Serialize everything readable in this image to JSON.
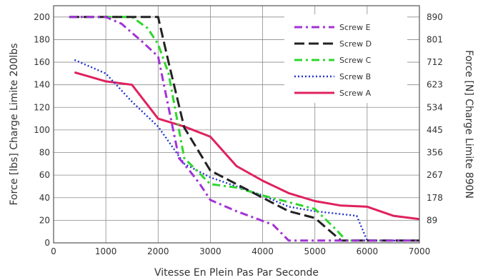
{
  "chart_data": {
    "type": "line",
    "xlabel": "Vitesse En Plein Pas Par Seconde",
    "ylabel": "Force [lbs] Charge Limite 200lbs",
    "y2label": "Force [N] Charge Limite 890N",
    "xlim": [
      0,
      7000
    ],
    "ylim": [
      0,
      210
    ],
    "x_ticks": [
      "0",
      "1000",
      "2000",
      "3000",
      "4000",
      "5000",
      "6000",
      "7000"
    ],
    "y_ticks": [
      "0",
      "20",
      "40",
      "60",
      "80",
      "100",
      "120",
      "140",
      "160",
      "180",
      "200"
    ],
    "y2_ticks": [
      "89",
      "178",
      "267",
      "356",
      "445",
      "534",
      "623",
      "712",
      "801",
      "890"
    ],
    "grid": true,
    "legend_position": "top-right",
    "series": [
      {
        "name": "Screw E",
        "color": "#a233d6",
        "dash": "dashdot",
        "points": [
          [
            300,
            200
          ],
          [
            1000,
            200
          ],
          [
            1300,
            194
          ],
          [
            1700,
            178
          ],
          [
            2000,
            165
          ],
          [
            2200,
            120
          ],
          [
            2400,
            75
          ],
          [
            2600,
            64
          ],
          [
            2800,
            52
          ],
          [
            3000,
            38
          ],
          [
            3500,
            28
          ],
          [
            4200,
            16
          ],
          [
            4500,
            2
          ],
          [
            7000,
            2
          ]
        ]
      },
      {
        "name": "Screw D",
        "color": "#222222",
        "dash": "dash",
        "points": [
          [
            300,
            200
          ],
          [
            2000,
            200
          ],
          [
            2200,
            160
          ],
          [
            2500,
            102
          ],
          [
            3000,
            64
          ],
          [
            3500,
            52
          ],
          [
            4000,
            40
          ],
          [
            4500,
            28
          ],
          [
            5000,
            22
          ],
          [
            5500,
            2
          ],
          [
            7000,
            2
          ]
        ]
      },
      {
        "name": "Screw C",
        "color": "#2ed62e",
        "dash": "dashdot",
        "points": [
          [
            300,
            200
          ],
          [
            1500,
            200
          ],
          [
            1800,
            190
          ],
          [
            2000,
            176
          ],
          [
            2200,
            150
          ],
          [
            2500,
            75
          ],
          [
            3000,
            52
          ],
          [
            3500,
            49
          ],
          [
            4000,
            42
          ],
          [
            5000,
            30
          ],
          [
            5400,
            12
          ],
          [
            5600,
            2
          ],
          [
            7000,
            2
          ]
        ]
      },
      {
        "name": "Screw B",
        "color": "#2233cc",
        "dash": "dot",
        "points": [
          [
            400,
            162
          ],
          [
            1000,
            150
          ],
          [
            1500,
            125
          ],
          [
            2000,
            103
          ],
          [
            2500,
            70
          ],
          [
            3000,
            58
          ],
          [
            3500,
            50
          ],
          [
            4000,
            42
          ],
          [
            4500,
            32
          ],
          [
            5000,
            28
          ],
          [
            5800,
            24
          ],
          [
            6000,
            2
          ],
          [
            7000,
            2
          ]
        ]
      },
      {
        "name": "Screw A",
        "color": "#e0215e",
        "dash": "solid",
        "points": [
          [
            400,
            151
          ],
          [
            1000,
            143
          ],
          [
            1500,
            140
          ],
          [
            2000,
            110
          ],
          [
            2500,
            103
          ],
          [
            3000,
            94
          ],
          [
            3500,
            68
          ],
          [
            4000,
            55
          ],
          [
            4500,
            44
          ],
          [
            5000,
            37
          ],
          [
            5500,
            33
          ],
          [
            6000,
            32
          ],
          [
            6500,
            24
          ],
          [
            7000,
            21
          ]
        ]
      }
    ]
  }
}
